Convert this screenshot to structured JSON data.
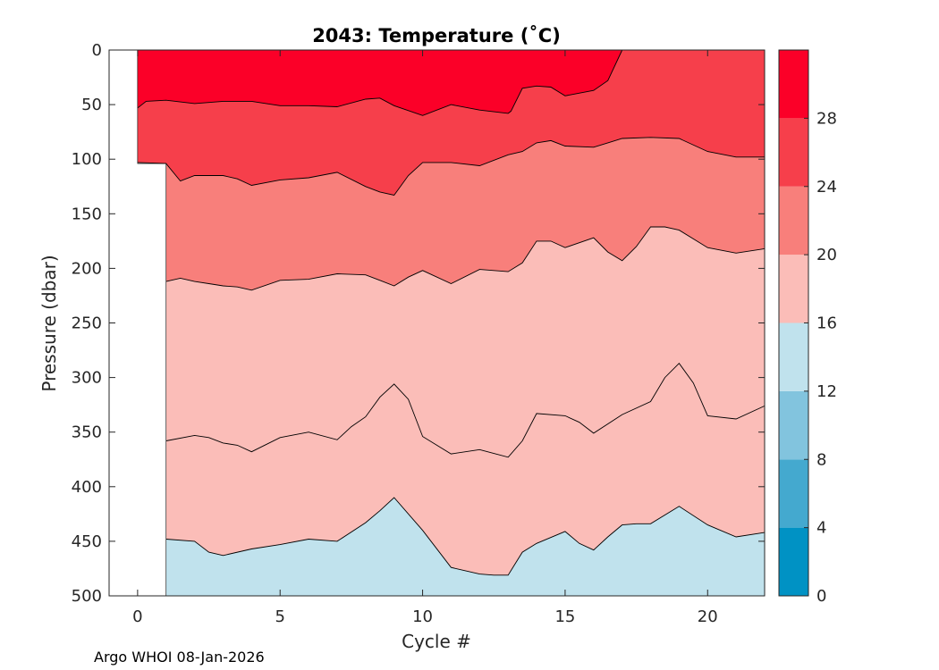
{
  "chart_data": {
    "type": "filled-contour",
    "title": "2043:  Temperature (˚C)",
    "xlabel": "Cycle #",
    "ylabel": "Pressure (dbar)",
    "xlim": [
      -1,
      22
    ],
    "ylim": [
      0,
      500
    ],
    "y_reversed": true,
    "x_ticks": [
      0,
      5,
      10,
      15,
      20
    ],
    "x_tick_labels": [
      "0",
      "5",
      "10",
      "15",
      "20"
    ],
    "y_ticks": [
      0,
      50,
      100,
      150,
      200,
      250,
      300,
      350,
      400,
      450,
      500
    ],
    "y_tick_labels": [
      "0",
      "50",
      "100",
      "150",
      "200",
      "250",
      "300",
      "350",
      "400",
      "450",
      "500"
    ],
    "colorbar": {
      "levels": [
        0,
        4,
        8,
        12,
        16,
        20,
        24,
        28,
        32
      ],
      "tick_values": [
        0,
        4,
        8,
        12,
        16,
        20,
        24,
        28
      ],
      "tick_labels": [
        "0",
        "4",
        "8",
        "12",
        "16",
        "20",
        "24",
        "28"
      ],
      "colors": [
        "#0092c4",
        "#44a9cf",
        "#82c4de",
        "#c0e2ed",
        "#fbbdb8",
        "#f87f7b",
        "#f63f4b",
        "#fb0028"
      ]
    },
    "contours": [
      {
        "name": "28°C isotherm",
        "level": 28,
        "x": [
          0,
          0.3,
          1,
          2,
          3,
          4,
          5,
          6,
          7,
          8,
          8.5,
          9,
          10,
          11,
          12,
          13,
          13.1,
          13.5,
          14,
          14.5,
          15,
          16,
          16.5,
          17
        ],
        "y": [
          53,
          47,
          46,
          49,
          47,
          47,
          51,
          51,
          52,
          45,
          44,
          51,
          60,
          50,
          55,
          58,
          56,
          35,
          33,
          34,
          42,
          37,
          28,
          0
        ]
      },
      {
        "name": "24°C isotherm",
        "level": 24,
        "x": [
          0,
          1,
          1.5,
          2,
          3,
          3.5,
          4,
          5,
          6,
          7,
          8,
          8.5,
          9,
          9.5,
          10,
          11,
          12,
          13,
          13.5,
          14,
          14.5,
          15,
          16,
          16.5,
          17,
          18,
          19,
          20,
          21,
          22
        ],
        "y": [
          103,
          104,
          120,
          115,
          115,
          118,
          124,
          119,
          117,
          112,
          125,
          130,
          133,
          115,
          103,
          103,
          106,
          96,
          93,
          85,
          83,
          88,
          89,
          85,
          81,
          80,
          81,
          93,
          98,
          98
        ]
      },
      {
        "name": "20°C isotherm",
        "level": 20,
        "x": [
          1,
          1.5,
          2,
          2.5,
          3,
          3.5,
          4,
          5,
          6,
          7,
          8,
          8.5,
          9,
          9.5,
          10,
          11,
          12,
          13,
          13.5,
          14,
          14.5,
          15,
          16,
          16.5,
          17,
          17.5,
          18,
          18.5,
          19,
          20,
          21,
          22
        ],
        "y": [
          212,
          209,
          212,
          214,
          216,
          217,
          220,
          211,
          210,
          205,
          206,
          211,
          216,
          208,
          202,
          214,
          201,
          203,
          195,
          175,
          175,
          181,
          172,
          185,
          193,
          180,
          162,
          162,
          165,
          181,
          186,
          182
        ]
      },
      {
        "name": "16°C isotherm",
        "level": 16,
        "x": [
          1,
          2,
          2.5,
          3,
          3.5,
          4,
          5,
          6,
          7,
          7.5,
          8,
          8.5,
          9,
          9.5,
          10,
          11,
          12,
          13,
          13.5,
          14,
          15,
          15.5,
          16,
          17,
          18,
          18.5,
          19,
          19.5,
          20,
          21,
          22
        ],
        "y": [
          358,
          353,
          355,
          360,
          362,
          368,
          355,
          350,
          357,
          345,
          336,
          318,
          306,
          320,
          354,
          370,
          366,
          373,
          358,
          333,
          335,
          341,
          351,
          334,
          322,
          300,
          287,
          305,
          335,
          338,
          326
        ]
      },
      {
        "name": "12°C isotherm",
        "level": 12,
        "x": [
          1,
          2,
          2.5,
          3,
          4,
          5,
          6,
          7,
          8,
          8.5,
          9,
          10,
          11,
          12,
          12.5,
          13,
          13.5,
          14,
          15,
          15.5,
          16,
          16.5,
          17,
          17.5,
          18,
          19,
          20,
          21,
          22
        ],
        "y": [
          448,
          450,
          460,
          463,
          457,
          453,
          448,
          450,
          433,
          422,
          410,
          440,
          474,
          480,
          481,
          481,
          460,
          452,
          441,
          452,
          458,
          446,
          435,
          434,
          434,
          418,
          435,
          446,
          442
        ]
      }
    ],
    "data_start": {
      "cycle_0_max_pressure": 104,
      "first_full_profile_cycle": 1
    }
  },
  "credit": "Argo WHOI 08-Jan-2026"
}
